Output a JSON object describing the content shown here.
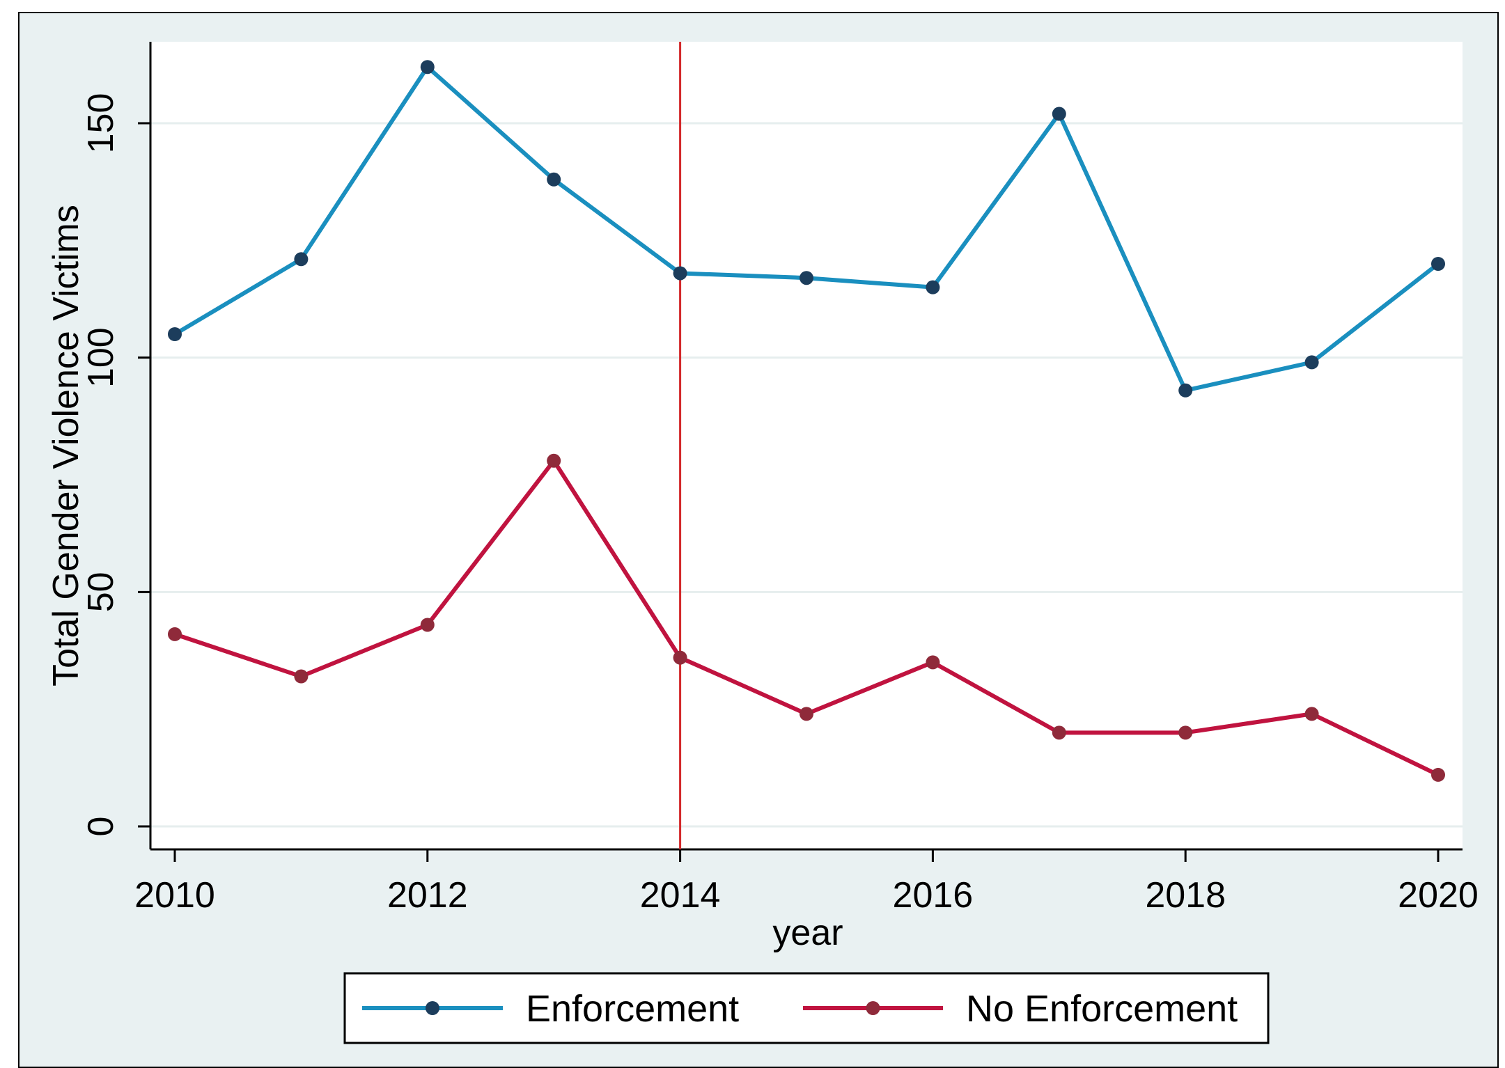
{
  "chart_data": {
    "type": "line",
    "xlabel": "year",
    "ylabel": "Total Gender Violence Victims",
    "xlim": [
      2010,
      2020
    ],
    "ylim": [
      0,
      165
    ],
    "x_ticks": [
      "2010",
      "2012",
      "2014",
      "2016",
      "2018",
      "2020"
    ],
    "y_ticks": [
      "0",
      "50",
      "100",
      "150"
    ],
    "x": [
      2010,
      2011,
      2012,
      2013,
      2014,
      2015,
      2016,
      2017,
      2018,
      2019,
      2020
    ],
    "series": [
      {
        "name": "Enforcement",
        "color": "#1a8fbf",
        "marker_color": "#1c3d5c",
        "values": [
          105,
          121,
          162,
          138,
          118,
          117,
          115,
          152,
          93,
          99,
          120
        ]
      },
      {
        "name": "No Enforcement",
        "color": "#c0133f",
        "marker_color": "#8f2a3a",
        "values": [
          41,
          32,
          43,
          78,
          36,
          24,
          35,
          20,
          20,
          24,
          11
        ]
      }
    ],
    "reference_line": {
      "x": 2014,
      "color": "#d3282a"
    },
    "grid": true,
    "legend_position": "bottom",
    "plot_background": "#ffffff",
    "outer_background": "#e9f1f2"
  }
}
